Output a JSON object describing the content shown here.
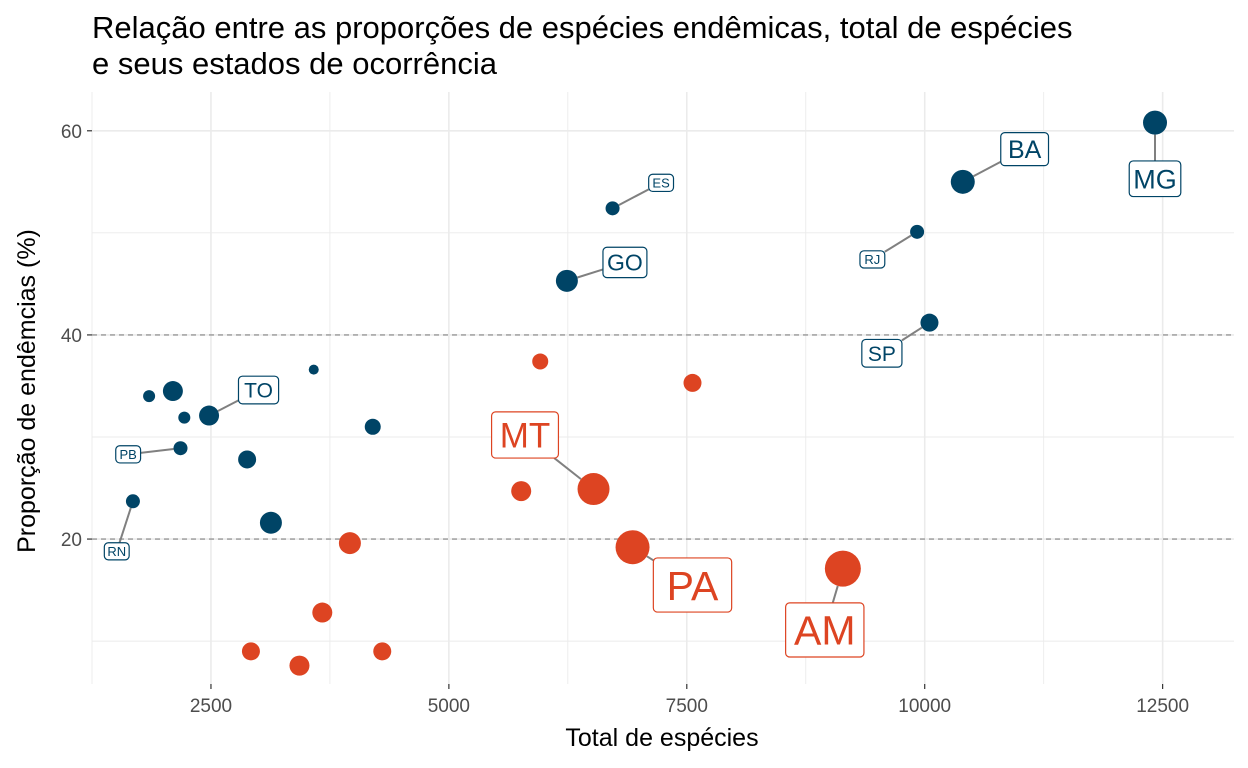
{
  "title_line1": "Relação entre as proporções de espécies endêmicas, total de espécies",
  "title_line2": "e seus estados de ocorrência",
  "colors": {
    "high": "#004466",
    "low": "#dd4422",
    "grid": "#ebebeb",
    "ref_line": "#999999",
    "segment": "#808080"
  },
  "chart_data": {
    "type": "scatter",
    "title": "Relação entre as proporções de espécies endêmicas, total de espécies e seus estados de ocorrência",
    "xlabel": "Total de espécies",
    "ylabel": "Proporção de endêmcias (%)",
    "xlim": [
      1250,
      13250
    ],
    "ylim": [
      5.8,
      63.8
    ],
    "xticks": [
      2500,
      5000,
      7500,
      10000,
      12500
    ],
    "yticks": [
      20,
      40,
      60
    ],
    "reference_lines_y": [
      20,
      40
    ],
    "grid": true,
    "points": [
      {
        "x": 12420,
        "y": 60.8,
        "size": 12,
        "group": "high",
        "label": "MG",
        "lx": 12420,
        "ly": 55.3,
        "fs": 27
      },
      {
        "x": 10400,
        "y": 55.0,
        "size": 12,
        "group": "high",
        "label": "BA",
        "lx": 11050,
        "ly": 58.2,
        "fs": 25
      },
      {
        "x": 9920,
        "y": 50.1,
        "size": 7,
        "group": "high",
        "label": "RJ",
        "lx": 9450,
        "ly": 47.4,
        "fs": 13
      },
      {
        "x": 10050,
        "y": 41.2,
        "size": 9,
        "group": "high",
        "label": "SP",
        "lx": 9550,
        "ly": 38.2,
        "fs": 21
      },
      {
        "x": 6720,
        "y": 52.4,
        "size": 7,
        "group": "high",
        "label": "ES",
        "lx": 7230,
        "ly": 54.9,
        "fs": 13
      },
      {
        "x": 6240,
        "y": 45.3,
        "size": 11,
        "group": "high",
        "label": "GO",
        "lx": 6850,
        "ly": 47.1,
        "fs": 23
      },
      {
        "x": 2480,
        "y": 32.1,
        "size": 10,
        "group": "high",
        "label": "TO",
        "lx": 3000,
        "ly": 34.6,
        "fs": 21
      },
      {
        "x": 2180,
        "y": 28.9,
        "size": 7,
        "group": "high",
        "label": "PB",
        "lx": 1630,
        "ly": 28.3,
        "fs": 13
      },
      {
        "x": 1680,
        "y": 23.7,
        "size": 7,
        "group": "high",
        "label": "RN",
        "lx": 1510,
        "ly": 18.8,
        "fs": 13
      },
      {
        "x": 2100,
        "y": 34.5,
        "size": 10,
        "group": "high",
        "label": ""
      },
      {
        "x": 1850,
        "y": 34.0,
        "size": 6,
        "group": "high",
        "label": ""
      },
      {
        "x": 2220,
        "y": 31.9,
        "size": 6,
        "group": "high",
        "label": ""
      },
      {
        "x": 2880,
        "y": 27.8,
        "size": 9,
        "group": "high",
        "label": ""
      },
      {
        "x": 3130,
        "y": 21.6,
        "size": 11,
        "group": "high",
        "label": ""
      },
      {
        "x": 3580,
        "y": 36.6,
        "size": 5,
        "group": "high",
        "label": ""
      },
      {
        "x": 4200,
        "y": 31.0,
        "size": 8,
        "group": "high",
        "label": ""
      },
      {
        "x": 9140,
        "y": 17.1,
        "size": 18,
        "group": "low",
        "label": "AM",
        "lx": 8950,
        "ly": 11.1,
        "fs": 41
      },
      {
        "x": 6930,
        "y": 19.2,
        "size": 17,
        "group": "low",
        "label": "PA",
        "lx": 7560,
        "ly": 15.5,
        "fs": 41
      },
      {
        "x": 6520,
        "y": 24.9,
        "size": 16,
        "group": "low",
        "label": "MT",
        "lx": 5800,
        "ly": 30.2,
        "fs": 35
      },
      {
        "x": 5760,
        "y": 24.7,
        "size": 10,
        "group": "low",
        "label": ""
      },
      {
        "x": 5960,
        "y": 37.4,
        "size": 8,
        "group": "low",
        "label": ""
      },
      {
        "x": 7560,
        "y": 35.3,
        "size": 9,
        "group": "low",
        "label": ""
      },
      {
        "x": 3960,
        "y": 19.6,
        "size": 11,
        "group": "low",
        "label": ""
      },
      {
        "x": 3670,
        "y": 12.8,
        "size": 10,
        "group": "low",
        "label": ""
      },
      {
        "x": 2920,
        "y": 9.0,
        "size": 9,
        "group": "low",
        "label": ""
      },
      {
        "x": 3430,
        "y": 7.6,
        "size": 10,
        "group": "low",
        "label": ""
      },
      {
        "x": 4300,
        "y": 9.0,
        "size": 9,
        "group": "low",
        "label": ""
      }
    ]
  }
}
